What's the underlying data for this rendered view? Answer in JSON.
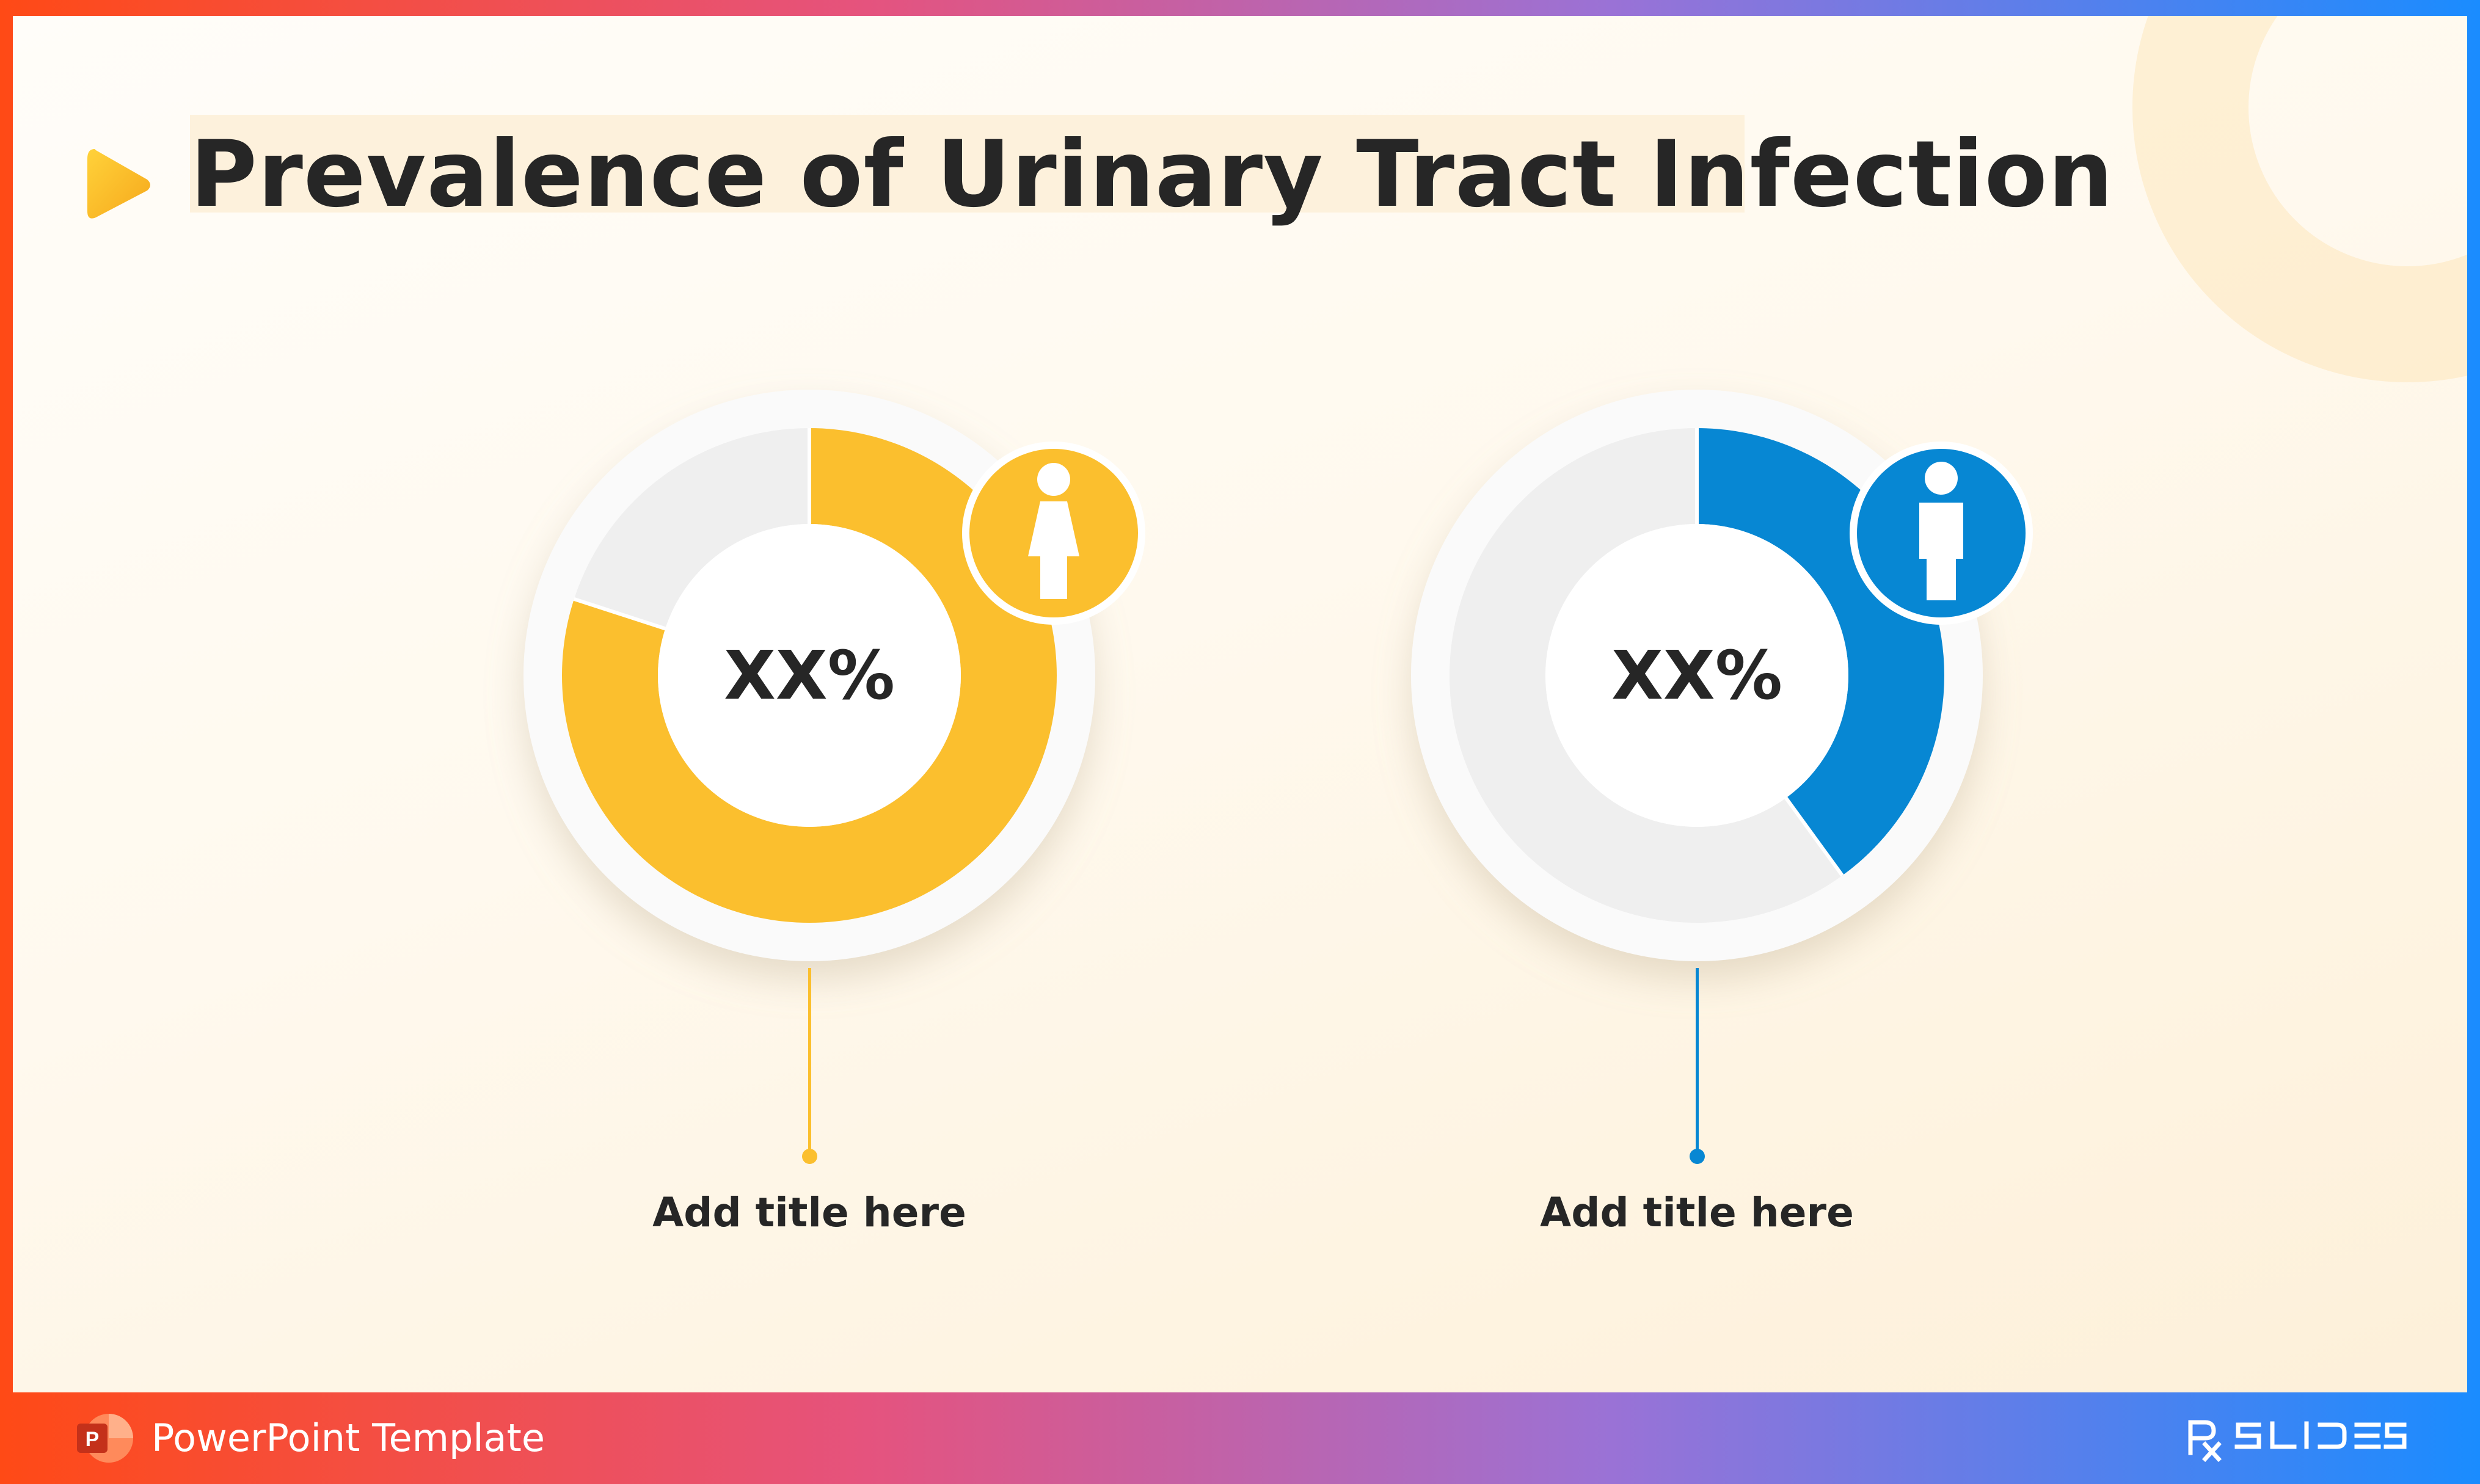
{
  "slide": {
    "title": "Prevalence of Urinary Tract Infection"
  },
  "chart_data": [
    {
      "type": "pie",
      "variant": "donut",
      "center_label": "XX%",
      "category_label": "Add title here",
      "icon": "female-icon",
      "colors": {
        "filled": "#fbbf2e",
        "remaining": "#efefef",
        "icon_bg": "#fbbf2e"
      },
      "values": [
        0.8,
        0.2
      ]
    },
    {
      "type": "pie",
      "variant": "donut",
      "center_label": "XX%",
      "category_label": "Add title here",
      "icon": "male-icon",
      "colors": {
        "filled": "#0787d3",
        "remaining": "#efefef",
        "icon_bg": "#0787d3"
      },
      "values": [
        0.4,
        0.6
      ]
    }
  ],
  "footer": {
    "label": "PowerPoint Template",
    "icon": "powerpoint-icon",
    "brand_icon": "rxslides-logo"
  },
  "theme": {
    "accent_yellow": "#fbbf2e",
    "accent_blue": "#0787d3",
    "text_dark": "#262626"
  }
}
